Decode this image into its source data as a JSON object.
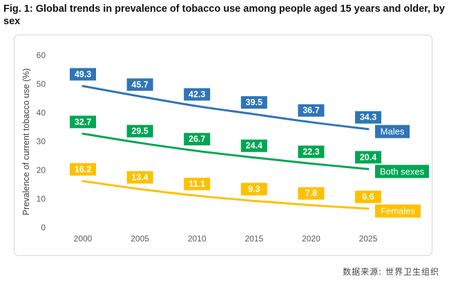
{
  "figure": {
    "title": "Fig. 1: Global trends in prevalence of tobacco use among people aged 15 years and older, by sex",
    "source": "数据来源: 世界卫生组织"
  },
  "chart_data": {
    "type": "line",
    "title": "",
    "xlabel": "",
    "ylabel": "Prevalence of current tobacco use (%)",
    "x": [
      2000,
      2005,
      2010,
      2015,
      2020,
      2025
    ],
    "xlim": [
      2000,
      2025
    ],
    "ylim": [
      0,
      60
    ],
    "yticks": [
      0,
      10,
      20,
      30,
      40,
      50,
      60
    ],
    "grid": false,
    "legend": "inline labels at line ends",
    "series": [
      {
        "name": "Males",
        "color": "#2e75b6",
        "values": [
          49.3,
          45.7,
          42.3,
          39.5,
          36.7,
          34.3
        ],
        "labels": [
          "49.3",
          "45.7",
          "42.3",
          "39.5",
          "36.7",
          "34.3"
        ]
      },
      {
        "name": "Both sexes",
        "color": "#00a651",
        "values": [
          32.7,
          29.5,
          26.7,
          24.4,
          22.3,
          20.4
        ],
        "labels": [
          "32.7",
          "29.5",
          "26.7",
          "24.4",
          "22.3",
          "20.4"
        ]
      },
      {
        "name": "Females",
        "color": "#ffc000",
        "values": [
          16.2,
          13.4,
          11.1,
          9.3,
          7.8,
          6.6
        ],
        "labels": [
          "16.2",
          "13.4",
          "11.1",
          "9.3",
          "7.8",
          "6.6"
        ]
      }
    ]
  }
}
